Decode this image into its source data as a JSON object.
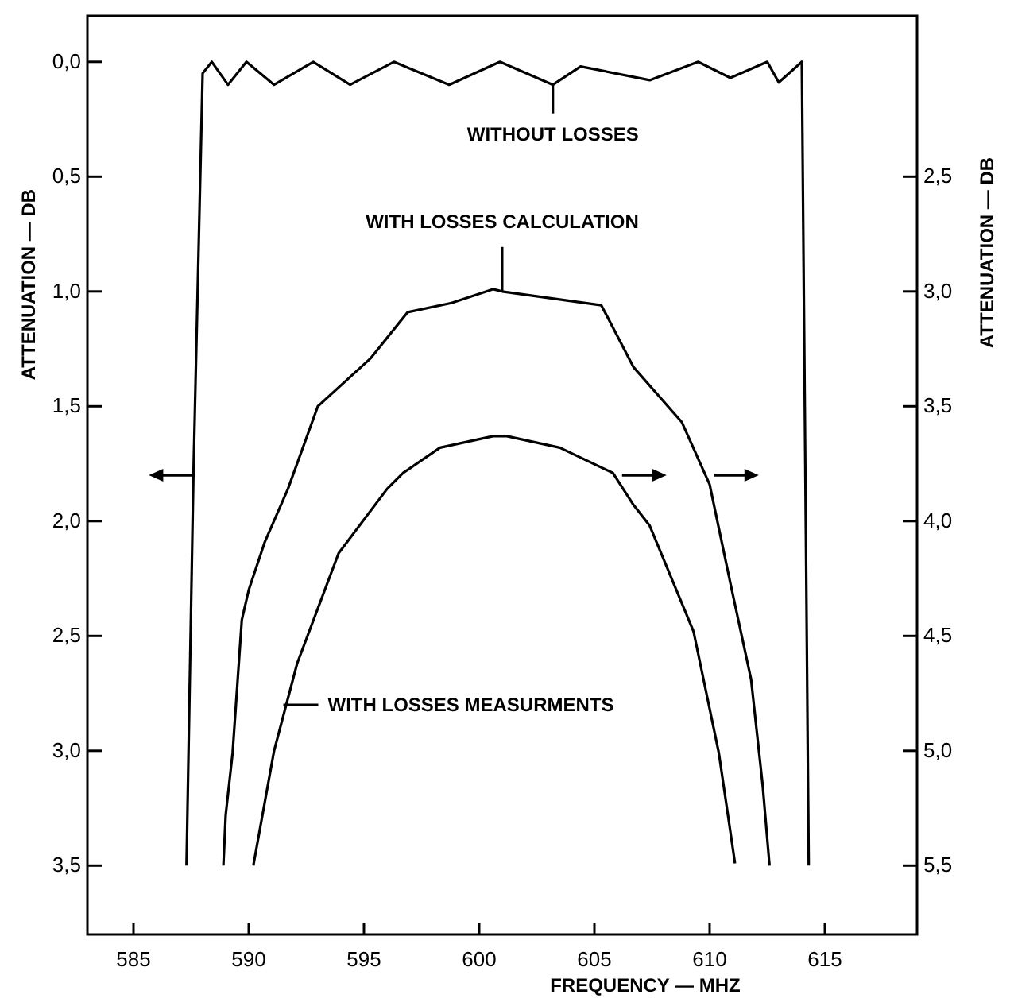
{
  "chart_data": {
    "type": "line",
    "xlabel": "FREQUENCY — MHZ",
    "ylabel": "ATTENUATION — DB",
    "y2label": "ATTENUATION — DB",
    "xlim": [
      583,
      619
    ],
    "xticks": [
      585,
      590,
      595,
      600,
      605,
      610,
      615
    ],
    "ylim": [
      3.8,
      -0.2
    ],
    "yticks": [
      {
        "value": 0,
        "label": "0,0"
      },
      {
        "value": 0.5,
        "label": "0,5"
      },
      {
        "value": 1,
        "label": "1,0"
      },
      {
        "value": 1.5,
        "label": "1,5"
      },
      {
        "value": 2,
        "label": "2,0"
      },
      {
        "value": 2.5,
        "label": "2,5"
      },
      {
        "value": 3,
        "label": "3,0"
      },
      {
        "value": 3.5,
        "label": "3,5"
      }
    ],
    "y2lim": [
      5.8,
      1.8
    ],
    "y2ticks": [
      {
        "value": 2.5,
        "label": "2,5"
      },
      {
        "value": 3,
        "label": "3,0"
      },
      {
        "value": 3.5,
        "label": "3,5"
      },
      {
        "value": 4,
        "label": "4,0"
      },
      {
        "value": 4.5,
        "label": "4,5"
      },
      {
        "value": 5,
        "label": "5,0"
      },
      {
        "value": 5.5,
        "label": "5,5"
      }
    ],
    "grid": false,
    "marker": "none",
    "line_style": "solid",
    "series": [
      {
        "color": "#000000",
        "x": [
          587.3,
          587.6,
          588.0,
          588.4,
          589.1,
          589.9,
          591.1,
          592.8,
          594.4,
          596.3,
          598.7,
          600.9,
          603.2,
          604.4,
          607.4,
          609.5,
          610.9,
          612.5,
          613.0,
          614.0,
          614.3
        ],
        "values": [
          3.5,
          1.8,
          0.05,
          0.0,
          0.1,
          0.0,
          0.1,
          0.0,
          0.1,
          0.0,
          0.1,
          0.0,
          0.1,
          0.02,
          0.08,
          0.0,
          0.07,
          0.0,
          0.09,
          0.0,
          3.5
        ]
      },
      {
        "color": "#000000",
        "axis": "y2",
        "x": [
          588.9,
          589.0,
          589.3,
          589.7,
          590.0,
          590.7,
          591.7,
          593.0,
          595.3,
          596.9,
          598.8,
          600.6,
          601.0,
          605.3,
          606.7,
          608.8,
          610.0,
          610.9,
          611.8,
          612.3,
          612.6
        ],
        "values": [
          5.5,
          5.28,
          5.01,
          4.43,
          4.3,
          4.09,
          3.86,
          3.5,
          3.29,
          3.09,
          3.05,
          2.99,
          3.0,
          3.06,
          3.33,
          3.57,
          3.84,
          4.27,
          4.69,
          5.15,
          5.5
        ]
      },
      {
        "color": "#000000",
        "axis": "y2",
        "x": [
          590.2,
          591.1,
          592.1,
          593.9,
          596.0,
          596.7,
          598.3,
          600.6,
          601.2,
          603.5,
          605.8,
          606.7,
          607.4,
          609.3,
          610.4,
          611.1
        ],
        "values": [
          5.5,
          5.0,
          4.62,
          4.14,
          3.86,
          3.79,
          3.68,
          3.63,
          3.63,
          3.68,
          3.79,
          3.93,
          4.02,
          4.48,
          5.01,
          5.49
        ]
      }
    ],
    "annotations": [
      {
        "text": "WITHOUT LOSSES",
        "x": 603.2,
        "y": 0.1
      },
      {
        "text": "WITH LOSSES CALCULATION",
        "x": 601,
        "y": 1.0
      },
      {
        "text": "WITH LOSSES MEASURMENTS",
        "x": 591.5,
        "y": 2.8
      }
    ]
  }
}
